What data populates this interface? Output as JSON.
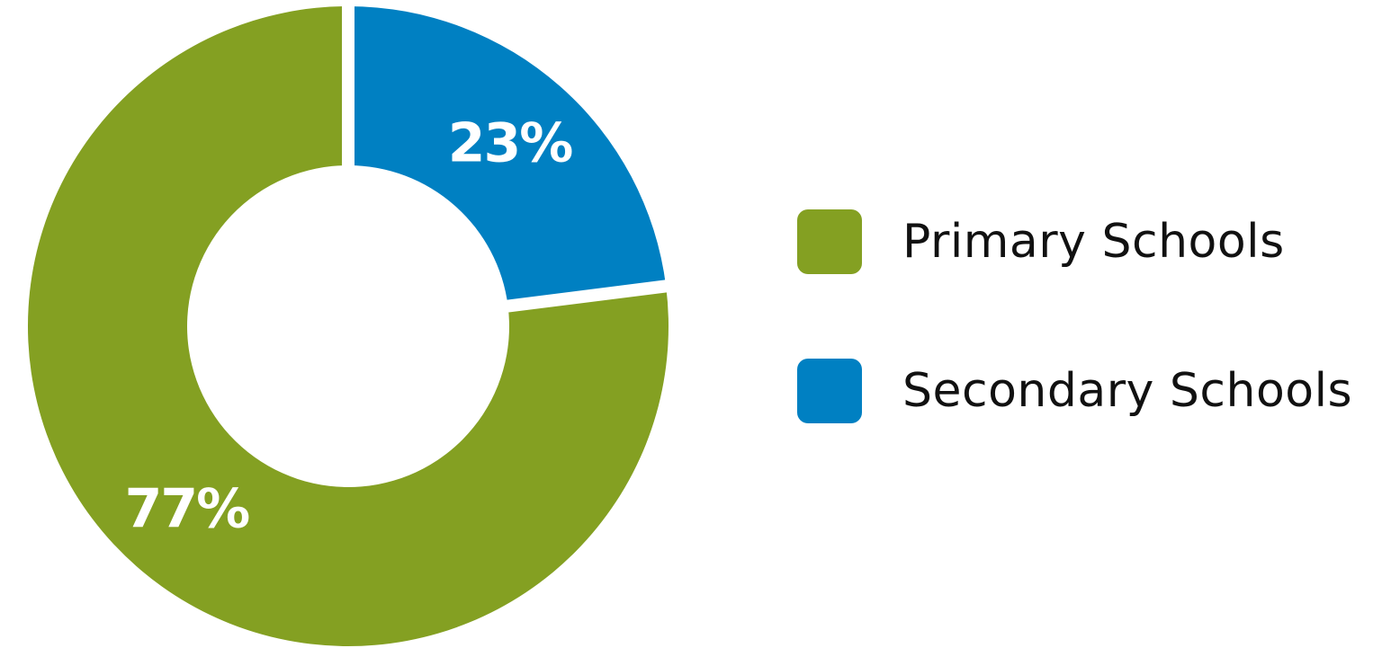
{
  "chart_data": {
    "type": "pie",
    "style": "donut",
    "categories": [
      "Primary Schools",
      "Secondary Schools"
    ],
    "values": [
      77,
      23
    ],
    "data_labels": [
      "77%",
      "23%"
    ],
    "colors": [
      "#84a022",
      "#0080c2"
    ],
    "legend_position": "right"
  },
  "legend": {
    "items": [
      {
        "label": "Primary Schools",
        "color": "#84a022"
      },
      {
        "label": "Secondary Schools",
        "color": "#0080c2"
      }
    ]
  }
}
